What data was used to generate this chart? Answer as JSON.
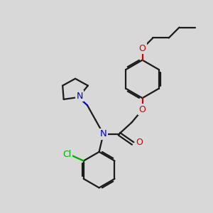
{
  "background_color": "#d8d8d8",
  "bond_color": "#1a1a1a",
  "oxygen_color": "#cc0000",
  "nitrogen_color": "#0000cc",
  "chlorine_color": "#00aa00",
  "line_width": 1.6,
  "figsize": [
    3.0,
    3.0
  ],
  "dpi": 100,
  "xlim": [
    0,
    10
  ],
  "ylim": [
    0,
    10
  ]
}
